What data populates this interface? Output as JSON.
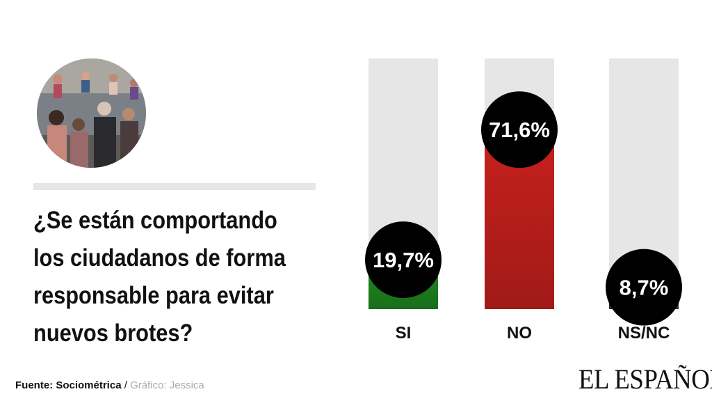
{
  "question": "¿Se están comportando los ciudadanos de forma responsable para evitar nuevos brotes?",
  "footer": {
    "source_label": "Fuente: Sociométrica",
    "separator": " / ",
    "credit": "Gráfico: Jessica"
  },
  "logo": "EL ESPAÑOL",
  "photo_icon": "crowd-photo-icon",
  "chart_data": {
    "type": "bar",
    "categories": [
      "SI",
      "NO",
      "NS/NC"
    ],
    "values": [
      19.7,
      71.6,
      8.7
    ],
    "value_labels": [
      "19,7%",
      "71,6%",
      "8,7%"
    ],
    "colors": [
      "#1f8a1f",
      "#c8211d",
      "#3a3a3a"
    ],
    "track_color": "#e6e6e6",
    "ylim": [
      0,
      100
    ],
    "title": "",
    "xlabel": "",
    "ylabel": ""
  }
}
